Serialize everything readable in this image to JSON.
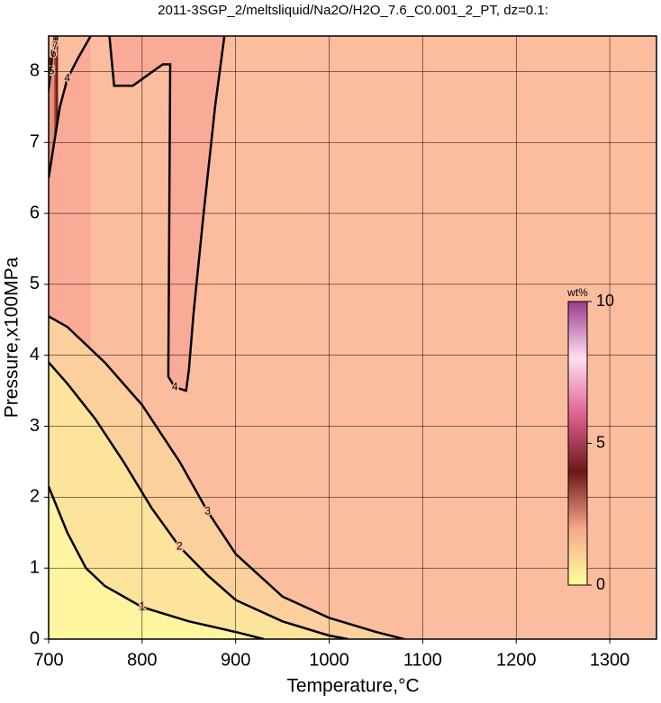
{
  "chart_data": {
    "type": "contour",
    "title": "2011-3SGP_2/meltsliquid/Na2O/H2O_7.6_C0.001_2_PT, dz=0.1:",
    "x_label": "Temperature,°C",
    "y_label": "Pressure,x100MPa",
    "xlim": [
      700,
      1350
    ],
    "xticks": [
      700,
      800,
      900,
      1000,
      1100,
      1200,
      1300
    ],
    "ylim": [
      0,
      8.5
    ],
    "yticks": [
      0,
      1,
      2,
      3,
      4,
      5,
      6,
      7,
      8
    ],
    "grid": true,
    "background": "#fcbd9e",
    "contours": [
      {
        "level": 1,
        "fill": "#fff5a0",
        "x": [
          700,
          720,
          740,
          760,
          800,
          850,
          900,
          930
        ],
        "y": [
          2.15,
          1.5,
          1.0,
          0.75,
          0.45,
          0.25,
          0.1,
          0.0
        ]
      },
      {
        "level": 2,
        "fill": "#fde49c",
        "x": [
          700,
          720,
          750,
          780,
          810,
          840,
          870,
          900,
          950,
          1000,
          1020
        ],
        "y": [
          3.9,
          3.6,
          3.1,
          2.5,
          1.85,
          1.3,
          0.9,
          0.55,
          0.25,
          0.05,
          0.0
        ]
      },
      {
        "level": 3,
        "fill": "#fcd09c",
        "x": [
          700,
          720,
          760,
          800,
          840,
          870,
          900,
          950,
          1000,
          1050,
          1080
        ],
        "y": [
          4.55,
          4.4,
          3.9,
          3.3,
          2.5,
          1.8,
          1.2,
          0.6,
          0.3,
          0.1,
          0.0
        ]
      },
      {
        "level": 4,
        "fill": "#f9ab97",
        "x": [
          700,
          706,
          712,
          720,
          732,
          745,
          null,
          765,
          770,
          790,
          822,
          830,
          829,
          828,
          835,
          847,
          850,
          855,
          865,
          878,
          888
        ],
        "y": [
          6.5,
          7.0,
          7.5,
          7.9,
          8.2,
          8.5,
          null,
          8.5,
          7.8,
          7.8,
          8.1,
          8.1,
          6.0,
          3.7,
          3.55,
          3.5,
          3.8,
          4.6,
          5.9,
          7.5,
          8.5
        ]
      },
      {
        "level": 5,
        "fill": "#e8907a",
        "x": [
          700,
          703,
          706
        ],
        "y": [
          7.7,
          8.0,
          8.5
        ]
      },
      {
        "level": 6,
        "fill": "#a04030",
        "x": [
          702,
          705,
          708
        ],
        "y": [
          8.0,
          8.25,
          8.5
        ]
      },
      {
        "level": 7,
        "fill": "#601818",
        "x": [
          704,
          707,
          710
        ],
        "y": [
          8.2,
          8.35,
          8.5
        ]
      }
    ],
    "colorbar": {
      "title": "wt%",
      "lim": [
        0,
        10
      ],
      "ticks": [
        0,
        5,
        10
      ],
      "colors": [
        "#ffff99",
        "#f6a78c",
        "#6b1818",
        "#e06090",
        "#ffe0f0",
        "#9a3a90"
      ]
    }
  }
}
